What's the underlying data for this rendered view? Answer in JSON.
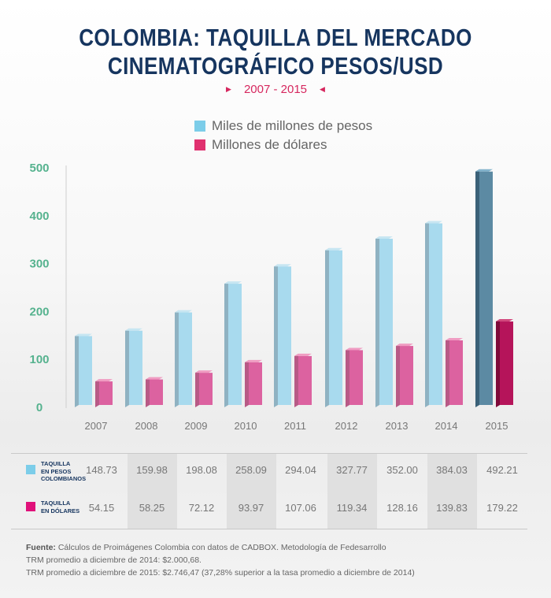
{
  "title_line1": "COLOMBIA: TAQUILLA DEL MERCADO",
  "title_line2": "CINEMATOGRÁFICO PESOS/USD",
  "subtitle": "2007 - 2015",
  "legend": {
    "pesos": "Miles de millones de pesos",
    "usd": "Millones de dólares"
  },
  "table": {
    "row1_label": [
      "TAQUILLA",
      "EN PESOS",
      "COLOMBIANOS"
    ],
    "row2_label": [
      "TAQUILLA",
      "EN DÓLARES"
    ],
    "row1_values": [
      "148.73",
      "159.98",
      "198.08",
      "258.09",
      "294.04",
      "327.77",
      "352.00",
      "384.03",
      "492.21"
    ],
    "row2_values": [
      "54.15",
      "58.25",
      "72.12",
      "93.97",
      "107.06",
      "119.34",
      "128.16",
      "139.83",
      "179.22"
    ]
  },
  "footer": {
    "source_label": "Fuente:",
    "source_text": " Cálculos de Proimágenes Colombia con datos de CADBOX. Metodología de Fedesarrollo",
    "line2": "TRM promedio a diciembre de 2014: $2.000,68.",
    "line3": "TRM promedio a diciembre de 2015: $2.746,47 (37,28% superior a la tasa promedio a diciembre de 2014)"
  },
  "colors": {
    "title": "#16355f",
    "accent": "#d6275e",
    "pesos": "#7ccde9",
    "pesos_highlight": "#4f7a92",
    "usd": "#d94a8a",
    "usd_highlight": "#b0124e",
    "axis_ticks": "#55b28e"
  },
  "chart_data": {
    "type": "bar",
    "title": "COLOMBIA: TAQUILLA DEL MERCADO CINEMATOGRÁFICO PESOS/USD",
    "subtitle": "2007 - 2015",
    "categories": [
      "2007",
      "2008",
      "2009",
      "2010",
      "2011",
      "2012",
      "2013",
      "2014",
      "2015"
    ],
    "series": [
      {
        "name": "Miles de millones de pesos",
        "values": [
          148.73,
          159.98,
          198.08,
          258.09,
          294.04,
          327.77,
          352.0,
          384.03,
          492.21
        ]
      },
      {
        "name": "Millones de dólares",
        "values": [
          54.15,
          58.25,
          72.12,
          93.97,
          107.06,
          119.34,
          128.16,
          139.83,
          179.22
        ]
      }
    ],
    "yticks": [
      "0",
      "100",
      "200",
      "300",
      "400",
      "500"
    ],
    "ylim": [
      0,
      500
    ],
    "grid": false,
    "legend": "top-center",
    "highlight_category": "2015"
  }
}
